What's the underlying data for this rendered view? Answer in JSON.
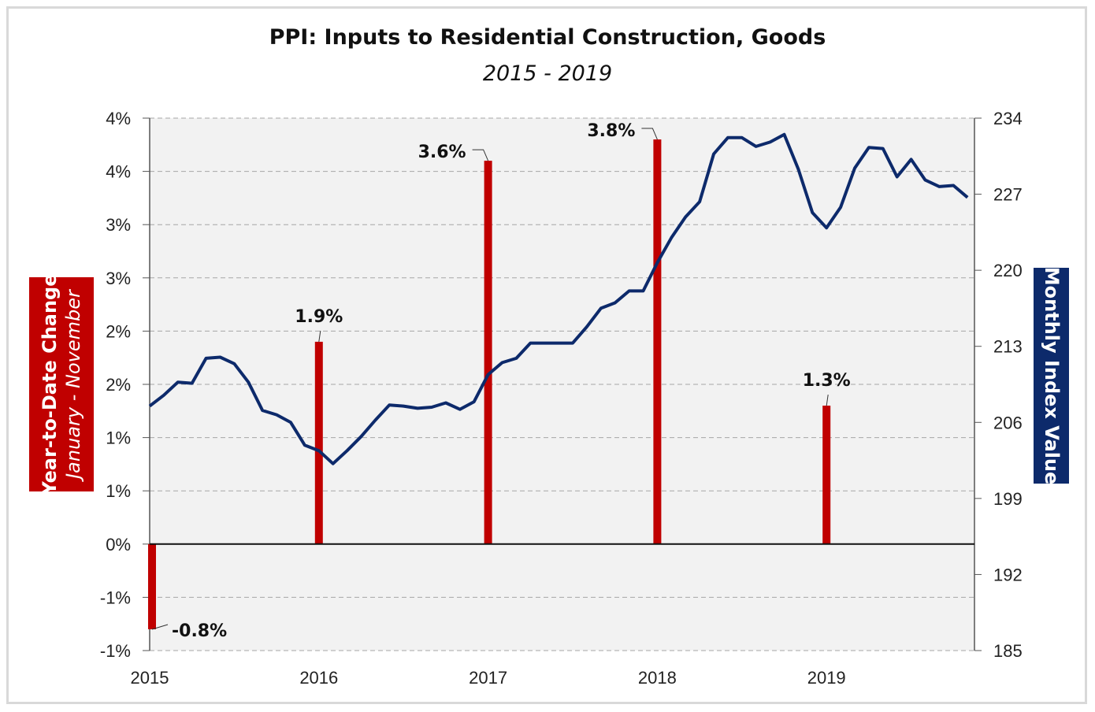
{
  "chart_data": {
    "type": "bar+line",
    "title": "PPI: Inputs to Residential Construction, Goods",
    "subtitle": "2015 - 2019",
    "ylabel_left": "Year-to-Date Change",
    "ylabel_left_sub": "January - November",
    "ylabel_right": "Monthly Index Value",
    "colors": {
      "bars": "#c00000",
      "line": "#0d2a6b",
      "plot_bg": "#f2f2f2"
    },
    "grid": true,
    "left_axis": {
      "ylim": [
        -1,
        4
      ],
      "ticks": [
        {
          "value": 4,
          "label": "4%"
        },
        {
          "value": 3.5,
          "label": "4%"
        },
        {
          "value": 3,
          "label": "3%"
        },
        {
          "value": 2.5,
          "label": "3%"
        },
        {
          "value": 2,
          "label": "2%"
        },
        {
          "value": 1.5,
          "label": "2%"
        },
        {
          "value": 1,
          "label": "1%"
        },
        {
          "value": 0.5,
          "label": "1%"
        },
        {
          "value": 0,
          "label": "0%"
        },
        {
          "value": -0.5,
          "label": "-1%"
        },
        {
          "value": -1,
          "label": "-1%"
        }
      ]
    },
    "right_axis": {
      "ylim": [
        185,
        234
      ],
      "ticks": [
        234,
        227,
        220,
        213,
        206,
        199,
        192,
        185
      ]
    },
    "x_ticks": [
      "2015",
      "2016",
      "2017",
      "2018",
      "2019"
    ],
    "bars": [
      {
        "year": "2015",
        "value": -0.8,
        "label": "-0.8%"
      },
      {
        "year": "2016",
        "value": 1.9,
        "label": "1.9%"
      },
      {
        "year": "2017",
        "value": 3.6,
        "label": "3.6%"
      },
      {
        "year": "2018",
        "value": 3.8,
        "label": "3.8%"
      },
      {
        "year": "2019",
        "value": 1.3,
        "label": "1.3%"
      }
    ],
    "line": {
      "start": "2015-01",
      "frequency": "monthly",
      "values": [
        207.5,
        208.5,
        209.7,
        209.6,
        211.9,
        212.0,
        211.4,
        209.7,
        207.1,
        206.7,
        206.0,
        203.9,
        203.4,
        202.2,
        203.4,
        204.7,
        206.2,
        207.6,
        207.5,
        207.3,
        207.4,
        207.8,
        207.2,
        207.9,
        210.4,
        211.5,
        211.9,
        213.3,
        213.3,
        213.3,
        213.3,
        214.8,
        216.5,
        217.0,
        218.1,
        218.1,
        220.7,
        223.0,
        224.9,
        226.3,
        230.7,
        232.2,
        232.2,
        231.4,
        231.8,
        232.5,
        229.3,
        225.3,
        223.9,
        225.8,
        229.4,
        231.3,
        231.2,
        228.6,
        230.2,
        228.3,
        227.7,
        227.8,
        226.7
      ]
    }
  }
}
